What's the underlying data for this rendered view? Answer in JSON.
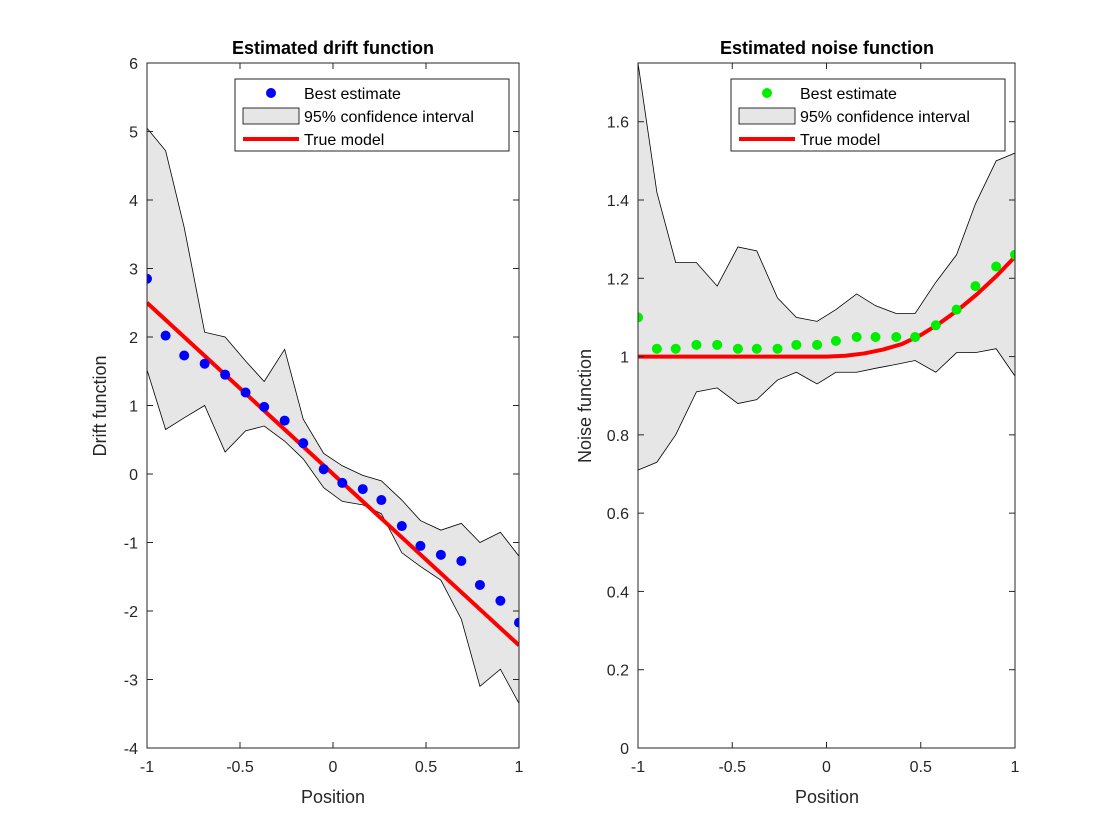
{
  "chart_data": [
    {
      "type": "line",
      "title": "Estimated drift function",
      "xlabel": "Position",
      "ylabel": "Drift function",
      "xlim": [
        -1,
        1
      ],
      "ylim": [
        -4,
        6
      ],
      "xticks": [
        -1,
        -0.5,
        0,
        0.5,
        1
      ],
      "yticks": [
        -4,
        -3,
        -2,
        -1,
        0,
        1,
        2,
        3,
        4,
        5,
        6
      ],
      "xtick_labels": [
        "-1",
        "-0.5",
        "0",
        "0.5",
        "1"
      ],
      "ytick_labels": [
        "-4",
        "-3",
        "-2",
        "-1",
        "0",
        "1",
        "2",
        "3",
        "4",
        "5",
        "6"
      ],
      "legend_position": "top-right",
      "x": [
        -1,
        -0.9,
        -0.8,
        -0.7,
        -0.6,
        -0.5,
        -0.4,
        -0.3,
        -0.2,
        -0.1,
        0,
        0.1,
        0.2,
        0.3,
        0.4,
        0.5,
        0.6,
        0.7,
        0.8,
        0.9,
        1
      ],
      "series": [
        {
          "name": "Best estimate",
          "kind": "scatter",
          "color": "#0000ff",
          "x": [
            -1,
            -0.9,
            -0.8,
            -0.69,
            -0.58,
            -0.47,
            -0.37,
            -0.26,
            -0.16,
            -0.05,
            0.05,
            0.16,
            0.26,
            0.37,
            0.47,
            0.58,
            0.69,
            0.79,
            0.9,
            1
          ],
          "y": [
            2.85,
            2.02,
            1.73,
            1.61,
            1.45,
            1.19,
            0.98,
            0.78,
            0.45,
            0.07,
            -0.13,
            -0.22,
            -0.38,
            -0.76,
            -1.05,
            -1.18,
            -1.27,
            -1.62,
            -1.85,
            -2.17
          ]
        },
        {
          "name": "95% confidence interval",
          "kind": "band",
          "color": "#e6e6e6",
          "x": [
            -1,
            -0.9,
            -0.8,
            -0.69,
            -0.58,
            -0.47,
            -0.37,
            -0.26,
            -0.16,
            -0.05,
            0.05,
            0.16,
            0.26,
            0.37,
            0.47,
            0.58,
            0.69,
            0.79,
            0.9,
            1
          ],
          "upper": [
            5.05,
            4.72,
            3.6,
            2.07,
            2.0,
            1.65,
            1.35,
            1.82,
            0.8,
            0.3,
            0.12,
            -0.02,
            -0.1,
            -0.38,
            -0.68,
            -0.82,
            -0.72,
            -1.0,
            -0.85,
            -1.2
          ],
          "lower": [
            1.52,
            0.65,
            0.82,
            1.0,
            0.32,
            0.63,
            0.7,
            0.48,
            0.22,
            -0.2,
            -0.4,
            -0.45,
            -0.58,
            -1.15,
            -1.35,
            -1.55,
            -2.12,
            -3.1,
            -2.85,
            -3.35
          ]
        },
        {
          "name": "True model",
          "kind": "line",
          "color": "#ff0000",
          "x": [
            -1,
            1
          ],
          "y": [
            2.5,
            -2.5
          ]
        }
      ]
    },
    {
      "type": "line",
      "title": "Estimated noise function",
      "xlabel": "Position",
      "ylabel": "Noise function",
      "xlim": [
        -1,
        1
      ],
      "ylim": [
        0,
        1.75
      ],
      "xticks": [
        -1,
        -0.5,
        0,
        0.5,
        1
      ],
      "yticks": [
        0,
        0.2,
        0.4,
        0.6,
        0.8,
        1,
        1.2,
        1.4,
        1.6
      ],
      "xtick_labels": [
        "-1",
        "-0.5",
        "0",
        "0.5",
        "1"
      ],
      "ytick_labels": [
        "0",
        "0.2",
        "0.4",
        "0.6",
        "0.8",
        "1",
        "1.2",
        "1.4",
        "1.6"
      ],
      "legend_position": "top-right",
      "series": [
        {
          "name": "Best estimate",
          "kind": "scatter",
          "color": "#00ee00",
          "x": [
            -1,
            -0.9,
            -0.8,
            -0.69,
            -0.58,
            -0.47,
            -0.37,
            -0.26,
            -0.16,
            -0.05,
            0.05,
            0.16,
            0.26,
            0.37,
            0.47,
            0.58,
            0.69,
            0.79,
            0.9,
            1
          ],
          "y": [
            1.1,
            1.02,
            1.02,
            1.03,
            1.03,
            1.02,
            1.02,
            1.02,
            1.03,
            1.03,
            1.04,
            1.05,
            1.05,
            1.05,
            1.05,
            1.08,
            1.12,
            1.18,
            1.23,
            1.26
          ]
        },
        {
          "name": "95% confidence interval",
          "kind": "band",
          "color": "#e6e6e6",
          "x": [
            -1,
            -0.9,
            -0.8,
            -0.69,
            -0.58,
            -0.47,
            -0.37,
            -0.26,
            -0.16,
            -0.05,
            0.05,
            0.16,
            0.26,
            0.37,
            0.47,
            0.58,
            0.69,
            0.79,
            0.9,
            1
          ],
          "upper": [
            1.75,
            1.42,
            1.24,
            1.24,
            1.18,
            1.28,
            1.27,
            1.15,
            1.1,
            1.09,
            1.12,
            1.16,
            1.13,
            1.11,
            1.11,
            1.19,
            1.26,
            1.39,
            1.5,
            1.52
          ],
          "lower": [
            0.71,
            0.73,
            0.8,
            0.91,
            0.92,
            0.88,
            0.89,
            0.94,
            0.96,
            0.93,
            0.96,
            0.96,
            0.97,
            0.98,
            0.99,
            0.96,
            1.01,
            1.01,
            1.02,
            0.95
          ]
        },
        {
          "name": "True model",
          "kind": "line",
          "color": "#ff0000",
          "x": [
            -1,
            -0.8,
            -0.6,
            -0.4,
            -0.2,
            0,
            0.1,
            0.2,
            0.3,
            0.4,
            0.5,
            0.6,
            0.7,
            0.8,
            0.9,
            1
          ],
          "y": [
            1,
            1,
            1,
            1,
            1,
            1,
            1.002,
            1.008,
            1.018,
            1.032,
            1.055,
            1.085,
            1.12,
            1.16,
            1.205,
            1.255
          ]
        }
      ]
    }
  ]
}
